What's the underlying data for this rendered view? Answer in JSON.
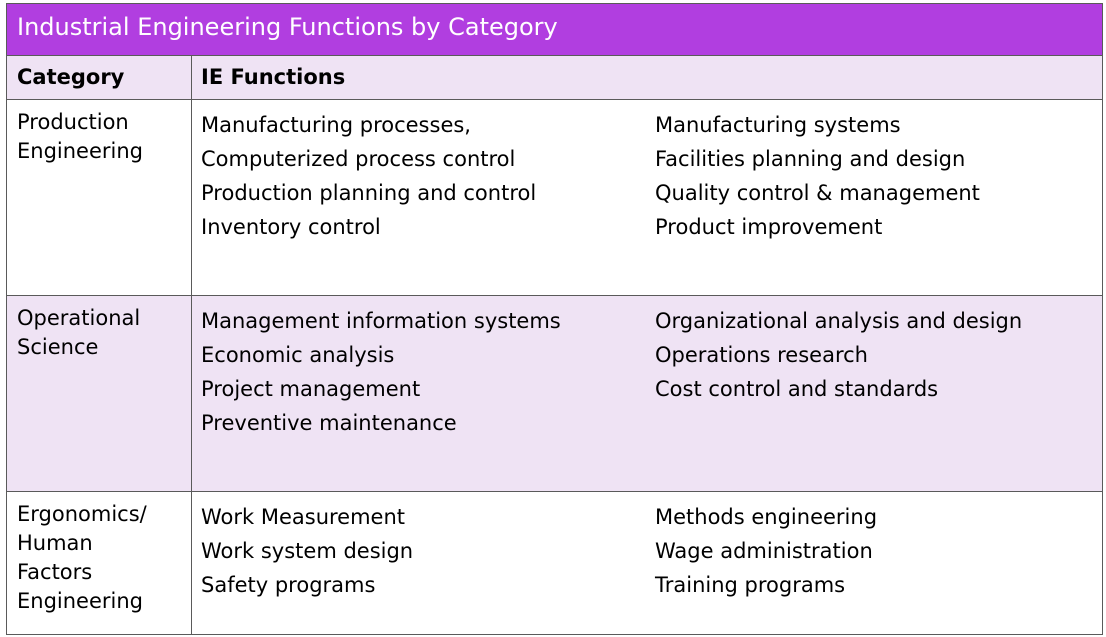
{
  "title": "Industrial Engineering Functions by Category",
  "headers": {
    "category": "Category",
    "functions": "IE Functions"
  },
  "rows": [
    {
      "category": [
        "Production",
        "Engineering"
      ],
      "left": [
        "Manufacturing processes,",
        "Computerized process control",
        "Production planning and control",
        "Inventory control"
      ],
      "right": [
        "Manufacturing systems",
        "Facilities planning and design",
        "Quality control & management",
        "Product improvement"
      ]
    },
    {
      "category": [
        "Operational",
        "Science"
      ],
      "left": [
        "Management information systems",
        "Economic analysis",
        "Project management",
        "Preventive maintenance"
      ],
      "right": [
        "Organizational analysis and design",
        "Operations research",
        "Cost control and standards"
      ]
    },
    {
      "category": [
        "Ergonomics/",
        "Human",
        "Factors",
        "Engineering"
      ],
      "left": [
        "Work Measurement",
        "Work system design",
        "Safety programs"
      ],
      "right": [
        "Methods engineering",
        "Wage administration",
        "Training programs"
      ]
    }
  ],
  "colors": {
    "title_bar": "#b13ee0",
    "shaded_row": "#efe3f4",
    "border": "#5a5a5a"
  }
}
